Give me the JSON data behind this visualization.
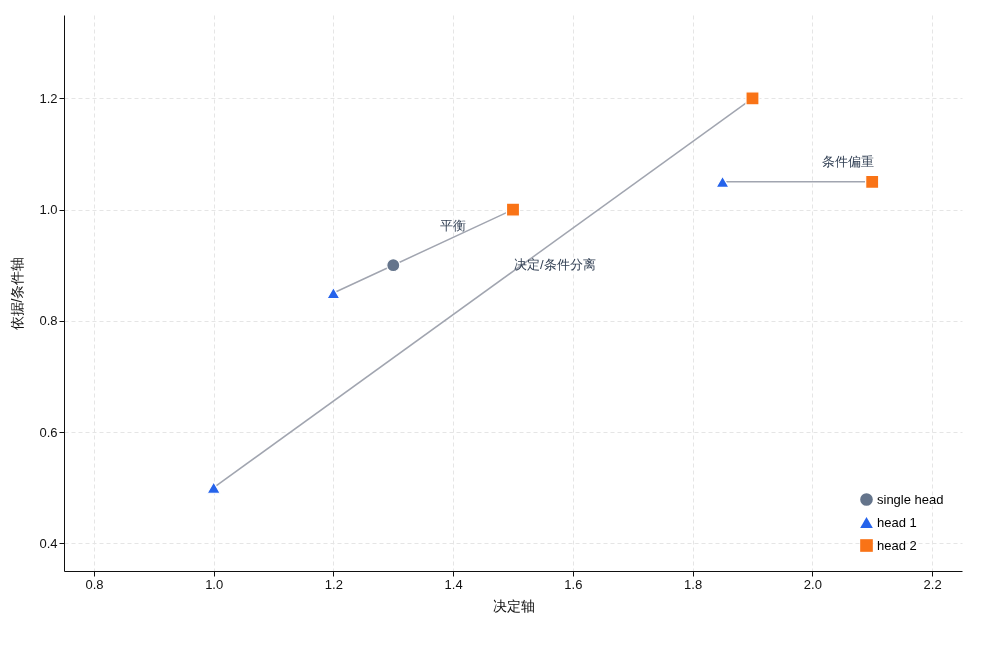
{
  "chart_data": {
    "type": "scatter",
    "xlabel": "决定轴",
    "ylabel": "依据/条件轴",
    "xlim": [
      0.75,
      2.25
    ],
    "ylim": [
      0.35,
      1.35
    ],
    "xticks": [
      0.8,
      {
        "value": 1,
        "label": "1.0"
      },
      1.2,
      1.4,
      1.6,
      1.8,
      {
        "value": 2,
        "label": "2.0"
      },
      2.2
    ],
    "yticks": [
      0.4,
      0.6,
      0.8,
      {
        "value": 1,
        "label": "1.0"
      },
      1.2
    ],
    "grid": true,
    "legend": "bottom right",
    "series": [
      {
        "type": "line",
        "color": "#a1a5b0",
        "x": [
          1.2,
          1.3,
          1.5
        ],
        "values": [
          0.85,
          0.9,
          1.0
        ]
      },
      {
        "type": "line",
        "color": "#a1a5b0",
        "x": [
          1.0,
          1.9
        ],
        "values": [
          0.5,
          1.2
        ]
      },
      {
        "type": "line",
        "color": "#a1a5b0",
        "x": [
          1.85,
          2.1
        ],
        "values": [
          1.05,
          1.05
        ]
      },
      {
        "name": "single head",
        "color": "#64748b",
        "marker": "circle",
        "x": [
          1.3
        ],
        "values": [
          0.9
        ]
      },
      {
        "name": "head 1",
        "color": "#2563eb",
        "marker": "triangle",
        "x": [
          1.2,
          1.0,
          1.85
        ],
        "values": [
          0.85,
          0.5,
          1.05
        ]
      },
      {
        "name": "head 2",
        "color": "#f97316",
        "marker": "square",
        "x": [
          1.5,
          1.9,
          2.1
        ],
        "values": [
          1.0,
          1.2,
          1.05
        ]
      }
    ],
    "annotations": [
      {
        "text": "平衡",
        "x": 1.4,
        "y": 0.96
      },
      {
        "text": "决定/条件分离",
        "x": 1.57,
        "y": 0.943
      },
      {
        "text": "条件偏重",
        "x": 2.06,
        "y": 1.05
      }
    ]
  }
}
